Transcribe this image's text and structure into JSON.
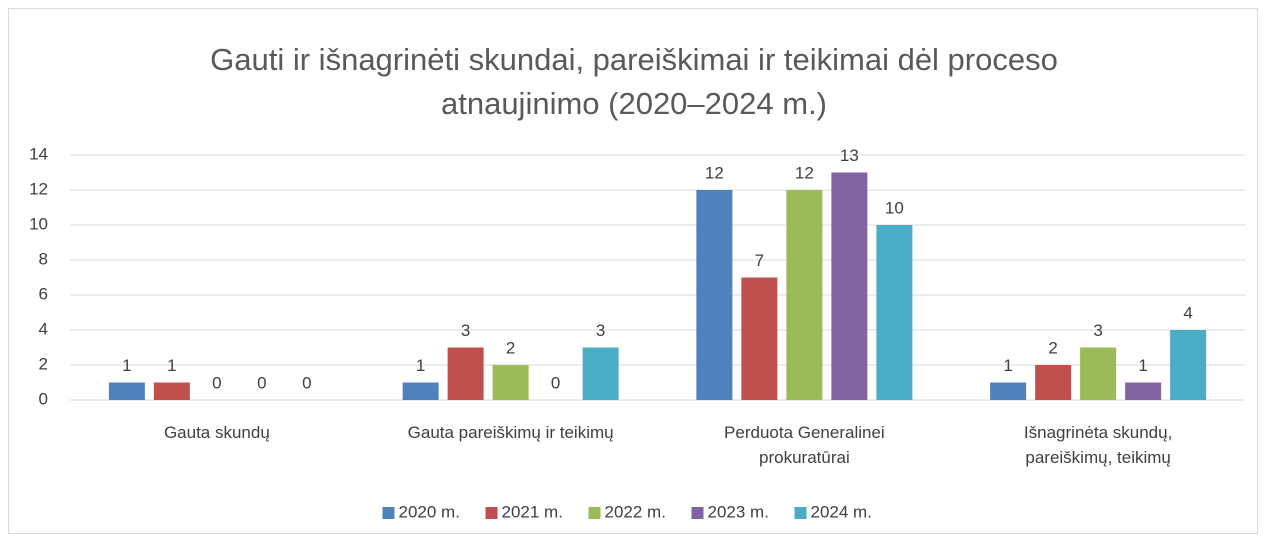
{
  "chart_data": {
    "type": "bar",
    "title": "Gauti ir išnagrinėti skundai, pareiškimai ir teikimai dėl proceso atnaujinimo (2020–2024 m.)",
    "categories": [
      "Gauta skundų",
      "Gauta pareiškimų ir teikimų",
      "Perduota Generalinei prokuratūrai",
      "Išnagrinėta skundų, pareiškimų, teikimų"
    ],
    "series": [
      {
        "name": "2020 m.",
        "color": "#4f81bd",
        "values": [
          1,
          1,
          12,
          1
        ]
      },
      {
        "name": "2021 m.",
        "color": "#c0504d",
        "values": [
          1,
          3,
          7,
          2
        ]
      },
      {
        "name": "2022 m.",
        "color": "#9bbb59",
        "values": [
          0,
          2,
          12,
          3
        ]
      },
      {
        "name": "2023 m.",
        "color": "#8064a2",
        "values": [
          0,
          0,
          13,
          1
        ]
      },
      {
        "name": "2024 m.",
        "color": "#4bacc6",
        "values": [
          0,
          3,
          10,
          4
        ]
      }
    ],
    "ylim": [
      0,
      14
    ],
    "yticks": [
      0,
      2,
      4,
      6,
      8,
      10,
      12,
      14
    ],
    "grid": true,
    "legend": "bottom"
  }
}
